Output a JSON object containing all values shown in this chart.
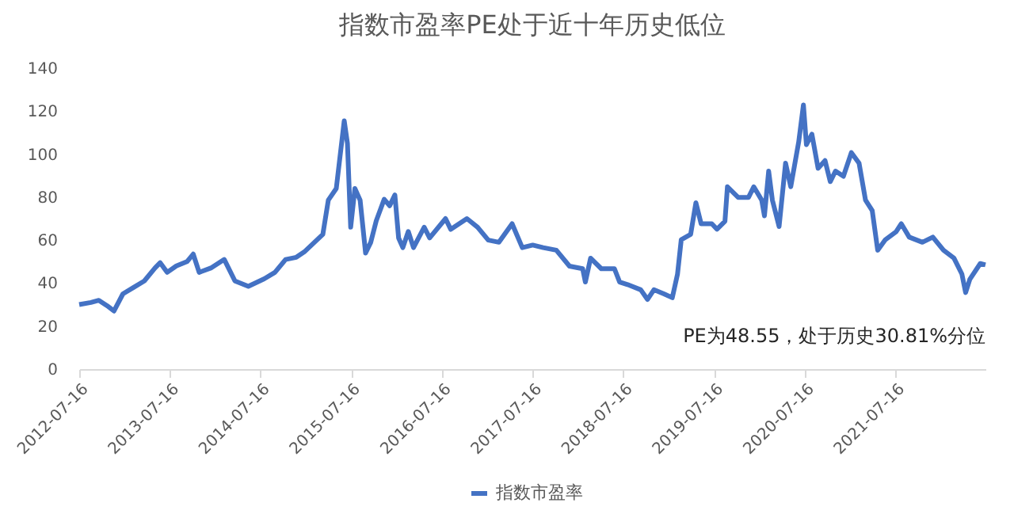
{
  "chart_data": {
    "type": "line",
    "title": "指数市盈率PE处于近十年历史低位",
    "x": [
      "2012-07-16",
      "2012-09-01",
      "2012-10-03",
      "2012-11-05",
      "2012-12-03",
      "2013-01-08",
      "2013-02-20",
      "2013-04-04",
      "2013-05-17",
      "2013-06-07",
      "2013-07-05",
      "2013-08-11",
      "2013-09-23",
      "2013-10-18",
      "2013-11-11",
      "2013-12-28",
      "2014-02-20",
      "2014-04-04",
      "2014-05-28",
      "2014-07-31",
      "2014-09-12",
      "2014-10-25",
      "2014-12-07",
      "2015-01-08",
      "2015-02-09",
      "2015-03-24",
      "2015-04-15",
      "2015-05-17",
      "2015-06-18",
      "2015-07-01",
      "2015-07-14",
      "2015-07-31",
      "2015-08-21",
      "2015-09-12",
      "2015-10-03",
      "2015-10-25",
      "2015-11-26",
      "2015-12-18",
      "2016-01-08",
      "2016-01-23",
      "2016-02-09",
      "2016-03-02",
      "2016-03-23",
      "2016-05-05",
      "2016-05-27",
      "2016-07-30",
      "2016-08-20",
      "2016-10-24",
      "2016-12-06",
      "2017-01-18",
      "2017-03-02",
      "2017-04-24",
      "2017-06-04",
      "2017-07-16",
      "2017-08-27",
      "2017-10-19",
      "2017-12-11",
      "2018-02-02",
      "2018-02-13",
      "2018-03-06",
      "2018-04-18",
      "2018-06-10",
      "2018-07-01",
      "2018-08-02",
      "2018-09-24",
      "2018-10-21",
      "2018-11-16",
      "2018-12-28",
      "2019-01-29",
      "2019-02-19",
      "2019-03-06",
      "2019-04-13",
      "2019-05-04",
      "2019-05-25",
      "2019-07-07",
      "2019-07-28",
      "2019-08-29",
      "2019-09-08",
      "2019-10-21",
      "2019-12-02",
      "2019-12-23",
      "2020-01-24",
      "2020-02-04",
      "2020-02-21",
      "2020-03-07",
      "2020-04-03",
      "2020-04-29",
      "2020-05-20",
      "2020-06-21",
      "2020-07-10",
      "2020-07-22",
      "2020-08-13",
      "2020-09-07",
      "2020-10-05",
      "2020-10-26",
      "2020-11-16",
      "2020-12-18",
      "2021-01-19",
      "2021-02-19",
      "2021-03-17",
      "2021-04-13",
      "2021-05-05",
      "2021-06-05",
      "2021-07-18",
      "2021-08-08",
      "2021-09-09",
      "2021-11-01",
      "2021-12-13",
      "2022-01-25",
      "2022-03-08",
      "2022-04-09",
      "2022-04-24",
      "2022-05-11",
      "2022-06-22",
      "2022-07-13"
    ],
    "series": [
      {
        "name": "指数市盈率",
        "color": "#4472c4",
        "values": [
          30,
          31,
          32,
          29.5,
          27,
          35,
          38,
          41,
          47,
          49.5,
          45,
          48,
          50,
          53.5,
          45,
          47,
          51,
          41,
          38.5,
          42,
          45,
          51,
          52,
          54.5,
          58,
          62.7,
          78.6,
          84,
          115.5,
          105,
          66,
          84,
          78.6,
          54,
          59,
          69,
          79,
          76,
          81,
          61,
          56.5,
          64,
          56.5,
          66,
          61,
          70,
          65,
          70,
          66,
          60,
          59,
          67.6,
          56.5,
          57.7,
          56.5,
          55.3,
          47.9,
          46.7,
          40.5,
          51.6,
          46.7,
          46.7,
          40.5,
          39.3,
          36.9,
          32.4,
          36.9,
          34.9,
          33.2,
          44.2,
          60.2,
          62.7,
          77.4,
          67.6,
          67.6,
          65.1,
          68.8,
          84.8,
          79.9,
          79.9,
          84.8,
          78.6,
          71.3,
          92.1,
          78.6,
          66.3,
          95.8,
          84.8,
          105.7,
          122.9,
          104.4,
          109.3,
          93.4,
          97,
          87.2,
          92.1,
          89.7,
          100.7,
          95.8,
          78.6,
          73.7,
          55.3,
          60.2,
          63.9,
          67.6,
          61.4,
          59,
          61.4,
          55.3,
          51.6,
          44.2,
          35.6,
          41.8,
          49.1,
          48.5
        ]
      }
    ],
    "xlim": [
      "2012-07-16",
      "2022-07-13"
    ],
    "xticks": [
      "2012-07-16",
      "2013-07-16",
      "2014-07-16",
      "2015-07-16",
      "2016-07-16",
      "2017-07-16",
      "2018-07-16",
      "2019-07-16",
      "2020-07-16",
      "2021-07-16"
    ],
    "ylim": [
      0,
      140
    ],
    "yticks": [
      0,
      20,
      40,
      60,
      80,
      100,
      120,
      140
    ],
    "annotations": [
      "PE为48.55，处于历史30.81%分位"
    ],
    "legend": "bottom",
    "grid": false,
    "marker": "none",
    "line_style": "solid"
  }
}
